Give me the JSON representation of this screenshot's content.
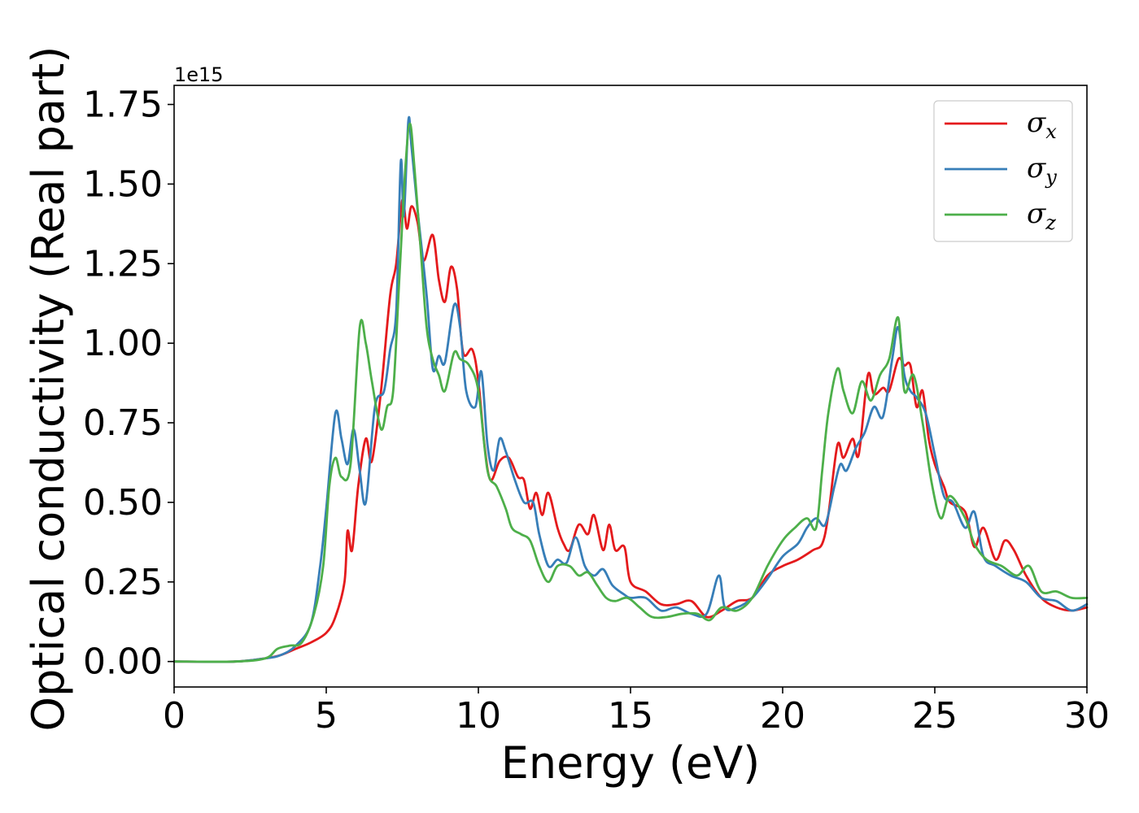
{
  "chart_data": {
    "type": "line",
    "xlabel": "Energy (eV)",
    "ylabel": "Optical conductivity (Real part)",
    "y_offset_text": "1e15",
    "xlim": [
      0,
      30
    ],
    "ylim": [
      -0.08,
      1.81
    ],
    "y_scale_factor": 1000000000000000.0,
    "xticks": [
      0,
      5,
      10,
      15,
      20,
      25,
      30
    ],
    "xtick_labels": [
      "0",
      "5",
      "10",
      "15",
      "20",
      "25",
      "30"
    ],
    "yticks": [
      0.0,
      0.25,
      0.5,
      0.75,
      1.0,
      1.25,
      1.5,
      1.75
    ],
    "ytick_labels": [
      "0.00",
      "0.25",
      "0.50",
      "0.75",
      "1.00",
      "1.25",
      "1.50",
      "1.75"
    ],
    "grid": false,
    "legend_position": "top-right",
    "series": [
      {
        "name": "σx",
        "symbol": "σ",
        "subscript": "x",
        "color": "#e41a1c",
        "points": [
          [
            0,
            0
          ],
          [
            2,
            0
          ],
          [
            3,
            0.01
          ],
          [
            3.5,
            0.02
          ],
          [
            4,
            0.04
          ],
          [
            4.5,
            0.06
          ],
          [
            5,
            0.09
          ],
          [
            5.3,
            0.14
          ],
          [
            5.6,
            0.25
          ],
          [
            5.7,
            0.41
          ],
          [
            5.85,
            0.35
          ],
          [
            6.05,
            0.55
          ],
          [
            6.3,
            0.7
          ],
          [
            6.5,
            0.63
          ],
          [
            6.8,
            0.85
          ],
          [
            7.1,
            1.15
          ],
          [
            7.3,
            1.25
          ],
          [
            7.5,
            1.45
          ],
          [
            7.65,
            1.36
          ],
          [
            7.8,
            1.43
          ],
          [
            8.0,
            1.38
          ],
          [
            8.2,
            1.26
          ],
          [
            8.5,
            1.34
          ],
          [
            8.7,
            1.2
          ],
          [
            8.9,
            1.13
          ],
          [
            9.1,
            1.24
          ],
          [
            9.3,
            1.17
          ],
          [
            9.5,
            0.97
          ],
          [
            9.8,
            0.98
          ],
          [
            10.0,
            0.88
          ],
          [
            10.2,
            0.68
          ],
          [
            10.4,
            0.57
          ],
          [
            10.7,
            0.63
          ],
          [
            11.0,
            0.64
          ],
          [
            11.3,
            0.58
          ],
          [
            11.5,
            0.57
          ],
          [
            11.7,
            0.48
          ],
          [
            11.9,
            0.53
          ],
          [
            12.1,
            0.46
          ],
          [
            12.3,
            0.53
          ],
          [
            12.6,
            0.42
          ],
          [
            12.8,
            0.37
          ],
          [
            13.0,
            0.35
          ],
          [
            13.3,
            0.43
          ],
          [
            13.6,
            0.4
          ],
          [
            13.8,
            0.46
          ],
          [
            14.1,
            0.35
          ],
          [
            14.3,
            0.43
          ],
          [
            14.5,
            0.35
          ],
          [
            14.8,
            0.36
          ],
          [
            15.0,
            0.25
          ],
          [
            15.5,
            0.22
          ],
          [
            16.0,
            0.18
          ],
          [
            16.5,
            0.18
          ],
          [
            17.0,
            0.19
          ],
          [
            17.5,
            0.14
          ],
          [
            18.0,
            0.16
          ],
          [
            18.5,
            0.19
          ],
          [
            19.0,
            0.2
          ],
          [
            19.5,
            0.27
          ],
          [
            20.0,
            0.3
          ],
          [
            20.5,
            0.32
          ],
          [
            21.0,
            0.35
          ],
          [
            21.3,
            0.37
          ],
          [
            21.5,
            0.46
          ],
          [
            21.8,
            0.68
          ],
          [
            22.0,
            0.64
          ],
          [
            22.3,
            0.7
          ],
          [
            22.5,
            0.65
          ],
          [
            22.8,
            0.9
          ],
          [
            23.0,
            0.84
          ],
          [
            23.3,
            0.86
          ],
          [
            23.5,
            0.85
          ],
          [
            23.8,
            0.95
          ],
          [
            24.0,
            0.93
          ],
          [
            24.2,
            0.93
          ],
          [
            24.4,
            0.8
          ],
          [
            24.6,
            0.85
          ],
          [
            24.8,
            0.7
          ],
          [
            25.0,
            0.62
          ],
          [
            25.3,
            0.55
          ],
          [
            25.5,
            0.5
          ],
          [
            26.0,
            0.47
          ],
          [
            26.3,
            0.36
          ],
          [
            26.6,
            0.42
          ],
          [
            27.0,
            0.32
          ],
          [
            27.3,
            0.38
          ],
          [
            27.6,
            0.35
          ],
          [
            28.0,
            0.27
          ],
          [
            28.5,
            0.2
          ],
          [
            29.0,
            0.17
          ],
          [
            29.5,
            0.16
          ],
          [
            30.0,
            0.17
          ]
        ]
      },
      {
        "name": "σy",
        "symbol": "σ",
        "subscript": "y",
        "color": "#377eb8",
        "points": [
          [
            0,
            0
          ],
          [
            2,
            0
          ],
          [
            3,
            0.01
          ],
          [
            3.5,
            0.02
          ],
          [
            4,
            0.05
          ],
          [
            4.5,
            0.12
          ],
          [
            4.8,
            0.3
          ],
          [
            5.0,
            0.48
          ],
          [
            5.3,
            0.78
          ],
          [
            5.5,
            0.7
          ],
          [
            5.7,
            0.62
          ],
          [
            5.9,
            0.73
          ],
          [
            6.1,
            0.6
          ],
          [
            6.3,
            0.5
          ],
          [
            6.6,
            0.8
          ],
          [
            6.9,
            0.85
          ],
          [
            7.1,
            0.98
          ],
          [
            7.3,
            1.1
          ],
          [
            7.45,
            1.57
          ],
          [
            7.55,
            1.4
          ],
          [
            7.7,
            1.7
          ],
          [
            7.8,
            1.62
          ],
          [
            8.0,
            1.42
          ],
          [
            8.3,
            1.15
          ],
          [
            8.5,
            0.92
          ],
          [
            8.7,
            0.96
          ],
          [
            8.9,
            0.94
          ],
          [
            9.2,
            1.12
          ],
          [
            9.4,
            1.05
          ],
          [
            9.6,
            0.85
          ],
          [
            9.9,
            0.8
          ],
          [
            10.1,
            0.91
          ],
          [
            10.3,
            0.68
          ],
          [
            10.5,
            0.6
          ],
          [
            10.7,
            0.7
          ],
          [
            10.9,
            0.66
          ],
          [
            11.2,
            0.57
          ],
          [
            11.5,
            0.5
          ],
          [
            11.8,
            0.5
          ],
          [
            12.0,
            0.4
          ],
          [
            12.3,
            0.3
          ],
          [
            12.6,
            0.32
          ],
          [
            12.9,
            0.31
          ],
          [
            13.2,
            0.39
          ],
          [
            13.5,
            0.3
          ],
          [
            13.8,
            0.27
          ],
          [
            14.1,
            0.29
          ],
          [
            14.4,
            0.24
          ],
          [
            14.8,
            0.21
          ],
          [
            15.0,
            0.2
          ],
          [
            15.5,
            0.2
          ],
          [
            16.0,
            0.16
          ],
          [
            16.5,
            0.17
          ],
          [
            17.0,
            0.15
          ],
          [
            17.5,
            0.15
          ],
          [
            17.9,
            0.27
          ],
          [
            18.1,
            0.17
          ],
          [
            18.5,
            0.17
          ],
          [
            19.0,
            0.2
          ],
          [
            19.5,
            0.26
          ],
          [
            20.0,
            0.33
          ],
          [
            20.5,
            0.37
          ],
          [
            20.8,
            0.42
          ],
          [
            21.1,
            0.45
          ],
          [
            21.4,
            0.43
          ],
          [
            21.7,
            0.55
          ],
          [
            21.9,
            0.62
          ],
          [
            22.1,
            0.6
          ],
          [
            22.4,
            0.67
          ],
          [
            22.7,
            0.72
          ],
          [
            23.0,
            0.8
          ],
          [
            23.3,
            0.77
          ],
          [
            23.6,
            0.95
          ],
          [
            23.8,
            1.05
          ],
          [
            24.0,
            0.9
          ],
          [
            24.2,
            0.85
          ],
          [
            24.4,
            0.83
          ],
          [
            24.7,
            0.78
          ],
          [
            25.0,
            0.65
          ],
          [
            25.3,
            0.52
          ],
          [
            25.6,
            0.5
          ],
          [
            26.0,
            0.42
          ],
          [
            26.3,
            0.47
          ],
          [
            26.6,
            0.33
          ],
          [
            27.0,
            0.3
          ],
          [
            27.5,
            0.27
          ],
          [
            28.0,
            0.25
          ],
          [
            28.5,
            0.2
          ],
          [
            29.0,
            0.19
          ],
          [
            29.5,
            0.16
          ],
          [
            30.0,
            0.18
          ]
        ]
      },
      {
        "name": "σz",
        "symbol": "σ",
        "subscript": "z",
        "color": "#4daf4a",
        "points": [
          [
            0,
            0
          ],
          [
            2,
            0
          ],
          [
            3,
            0.01
          ],
          [
            3.4,
            0.04
          ],
          [
            3.8,
            0.05
          ],
          [
            4.2,
            0.06
          ],
          [
            4.6,
            0.15
          ],
          [
            4.9,
            0.3
          ],
          [
            5.1,
            0.55
          ],
          [
            5.3,
            0.64
          ],
          [
            5.5,
            0.58
          ],
          [
            5.8,
            0.62
          ],
          [
            6.1,
            1.05
          ],
          [
            6.3,
            1.0
          ],
          [
            6.5,
            0.88
          ],
          [
            6.8,
            0.73
          ],
          [
            7.0,
            0.8
          ],
          [
            7.2,
            0.85
          ],
          [
            7.4,
            1.2
          ],
          [
            7.6,
            1.55
          ],
          [
            7.75,
            1.69
          ],
          [
            7.9,
            1.55
          ],
          [
            8.1,
            1.3
          ],
          [
            8.3,
            1.05
          ],
          [
            8.5,
            0.95
          ],
          [
            8.7,
            0.9
          ],
          [
            8.9,
            0.85
          ],
          [
            9.2,
            0.97
          ],
          [
            9.4,
            0.95
          ],
          [
            9.7,
            0.93
          ],
          [
            10.0,
            0.85
          ],
          [
            10.3,
            0.6
          ],
          [
            10.6,
            0.55
          ],
          [
            10.9,
            0.48
          ],
          [
            11.1,
            0.42
          ],
          [
            11.4,
            0.4
          ],
          [
            11.7,
            0.38
          ],
          [
            12.0,
            0.3
          ],
          [
            12.3,
            0.25
          ],
          [
            12.6,
            0.3
          ],
          [
            13.0,
            0.3
          ],
          [
            13.3,
            0.27
          ],
          [
            13.6,
            0.28
          ],
          [
            13.9,
            0.24
          ],
          [
            14.2,
            0.2
          ],
          [
            14.5,
            0.19
          ],
          [
            14.9,
            0.2
          ],
          [
            15.3,
            0.17
          ],
          [
            15.7,
            0.14
          ],
          [
            16.2,
            0.14
          ],
          [
            16.7,
            0.15
          ],
          [
            17.2,
            0.15
          ],
          [
            17.6,
            0.13
          ],
          [
            18.0,
            0.17
          ],
          [
            18.5,
            0.16
          ],
          [
            19.0,
            0.2
          ],
          [
            19.5,
            0.3
          ],
          [
            20.0,
            0.38
          ],
          [
            20.4,
            0.42
          ],
          [
            20.8,
            0.45
          ],
          [
            21.1,
            0.42
          ],
          [
            21.3,
            0.6
          ],
          [
            21.5,
            0.78
          ],
          [
            21.8,
            0.92
          ],
          [
            22.0,
            0.85
          ],
          [
            22.3,
            0.78
          ],
          [
            22.6,
            0.88
          ],
          [
            22.9,
            0.82
          ],
          [
            23.2,
            0.9
          ],
          [
            23.5,
            0.95
          ],
          [
            23.8,
            1.08
          ],
          [
            24.0,
            0.85
          ],
          [
            24.3,
            0.9
          ],
          [
            24.6,
            0.75
          ],
          [
            24.9,
            0.56
          ],
          [
            25.2,
            0.45
          ],
          [
            25.5,
            0.52
          ],
          [
            26.0,
            0.45
          ],
          [
            26.3,
            0.37
          ],
          [
            26.7,
            0.32
          ],
          [
            27.2,
            0.3
          ],
          [
            27.7,
            0.27
          ],
          [
            28.1,
            0.3
          ],
          [
            28.5,
            0.22
          ],
          [
            29.0,
            0.22
          ],
          [
            29.5,
            0.2
          ],
          [
            30.0,
            0.2
          ]
        ]
      }
    ]
  }
}
